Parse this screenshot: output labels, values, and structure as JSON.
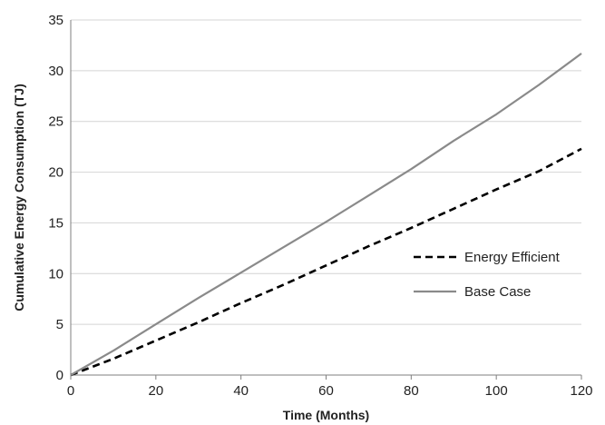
{
  "chart_data": {
    "type": "line",
    "title": "",
    "xlabel": "Time (Months)",
    "ylabel": "Cumulative Energy Consumption (TJ)",
    "xlim": [
      0,
      120
    ],
    "ylim": [
      0,
      35
    ],
    "xticks": [
      0,
      20,
      40,
      60,
      80,
      100,
      120
    ],
    "yticks": [
      0,
      5,
      10,
      15,
      20,
      25,
      30,
      35
    ],
    "grid": "horizontal",
    "legend": "right",
    "series": [
      {
        "name": "Energy Efficient",
        "style": "dashed",
        "color": "#000000",
        "x": [
          0,
          10,
          20,
          30,
          40,
          50,
          60,
          70,
          80,
          90,
          100,
          110,
          120
        ],
        "y": [
          0,
          1.6,
          3.4,
          5.2,
          7.1,
          8.9,
          10.8,
          12.7,
          14.5,
          16.4,
          18.3,
          20.1,
          22.3
        ]
      },
      {
        "name": "Base Case",
        "style": "solid",
        "color": "#8a8a8a",
        "x": [
          0,
          10,
          20,
          30,
          40,
          50,
          60,
          70,
          80,
          90,
          100,
          110,
          120
        ],
        "y": [
          0,
          2.4,
          5.0,
          7.6,
          10.1,
          12.6,
          15.1,
          17.7,
          20.3,
          23.1,
          25.7,
          28.6,
          31.7
        ]
      }
    ]
  }
}
